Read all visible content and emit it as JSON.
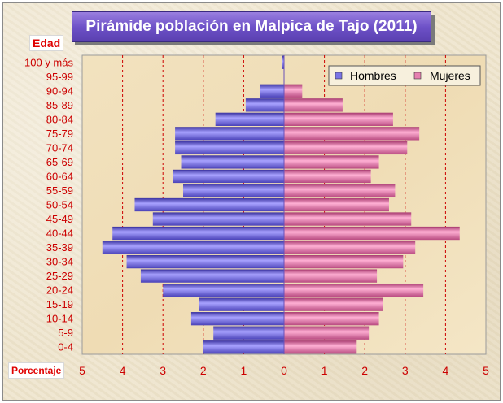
{
  "title": "Pirámide población en Malpica de Tajo (2011)",
  "ylabel": "Edad",
  "xlabel": "Porcentaje",
  "colors": {
    "hombres": "#7a74e6",
    "mujeres": "#e680b0",
    "grid": "#cc0000",
    "tick": "#cc0000"
  },
  "chart_data": {
    "type": "bar",
    "orientation": "horizontal",
    "title": "Pirámide población en Malpica de Tajo (2011)",
    "xlabel": "Porcentaje",
    "ylabel": "Edad",
    "xlim": [
      -5,
      5
    ],
    "x_ticks": [
      -5,
      -4,
      -3,
      -2,
      -1,
      0,
      1,
      2,
      3,
      4,
      5
    ],
    "x_tick_labels": [
      "5",
      "4",
      "3",
      "2",
      "1",
      "0",
      "1",
      "2",
      "3",
      "4",
      "5"
    ],
    "grid": "vertical dashed",
    "legend_position": "top-right",
    "categories": [
      "100 y más",
      "95-99",
      "90-94",
      "85-89",
      "80-84",
      "75-79",
      "70-74",
      "65-69",
      "60-64",
      "55-59",
      "50-54",
      "45-49",
      "40-44",
      "35-39",
      "30-34",
      "25-29",
      "20-24",
      "15-19",
      "10-14",
      "5-9",
      "0-4"
    ],
    "series": [
      {
        "name": "Hombres",
        "values": [
          0.05,
          0,
          0.6,
          0.95,
          1.7,
          2.7,
          2.7,
          2.55,
          2.75,
          2.5,
          3.7,
          3.25,
          4.25,
          4.5,
          3.9,
          3.55,
          3.0,
          2.1,
          2.3,
          1.75,
          2.0
        ]
      },
      {
        "name": "Mujeres",
        "values": [
          0,
          0,
          0.45,
          1.45,
          2.7,
          3.35,
          3.05,
          2.35,
          2.15,
          2.75,
          2.6,
          3.15,
          4.35,
          3.25,
          2.95,
          2.3,
          3.45,
          2.45,
          2.35,
          2.1,
          1.8
        ]
      }
    ]
  }
}
